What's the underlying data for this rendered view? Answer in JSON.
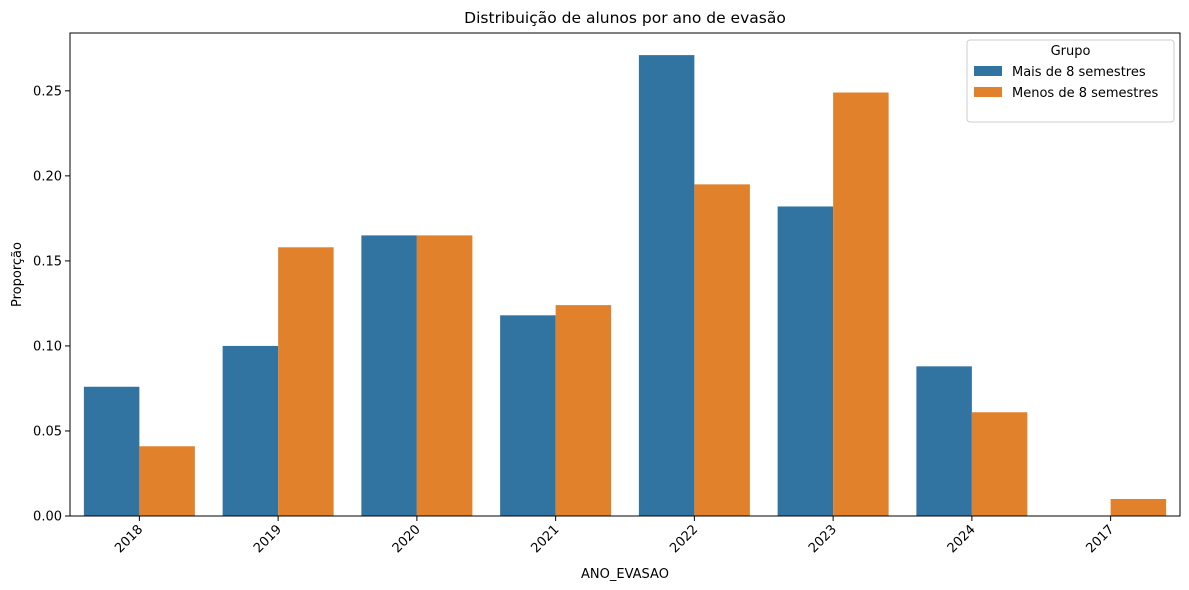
{
  "chart_data": {
    "type": "bar",
    "title": "Distribuição de alunos por ano de evasão",
    "xlabel": "ANO_EVASAO",
    "ylabel": "Proporção",
    "categories": [
      "2018",
      "2019",
      "2020",
      "2021",
      "2022",
      "2023",
      "2024",
      "2017"
    ],
    "series": [
      {
        "name": "Mais de 8 semestres",
        "color": "#3274a1",
        "values": [
          0.076,
          0.1,
          0.165,
          0.118,
          0.271,
          0.182,
          0.088,
          0.0
        ]
      },
      {
        "name": "Menos de 8 semestres",
        "color": "#e1812c",
        "values": [
          0.041,
          0.158,
          0.165,
          0.124,
          0.195,
          0.249,
          0.061,
          0.01
        ]
      }
    ],
    "ylim": [
      0,
      0.284
    ],
    "yticks": [
      "0.00",
      "0.05",
      "0.10",
      "0.15",
      "0.20",
      "0.25"
    ],
    "grid": false,
    "legend": {
      "title": "Grupo",
      "position": "top-right"
    }
  }
}
